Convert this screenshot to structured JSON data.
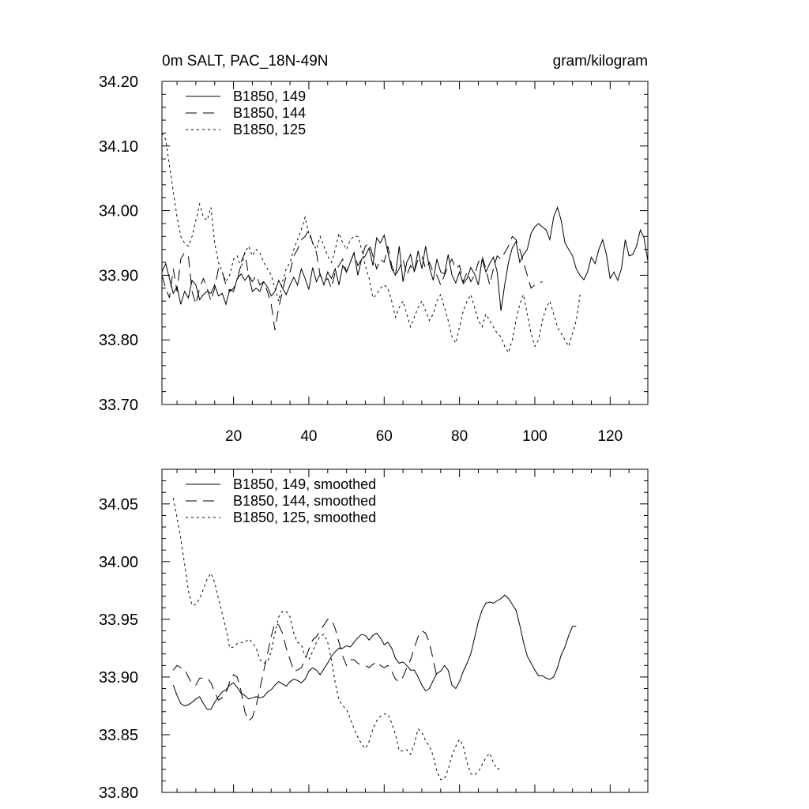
{
  "chart_data": [
    {
      "type": "line",
      "title": "0m SALT, PAC_18N-49N",
      "units": "gram/kilogram",
      "xlabel": "",
      "ylabel": "",
      "xlim": [
        1,
        130
      ],
      "ylim": [
        33.7,
        34.2
      ],
      "xticks": [
        20,
        40,
        60,
        80,
        100,
        120
      ],
      "xtick_labels": [
        "20",
        "40",
        "60",
        "80",
        "100",
        "120"
      ],
      "yticks": [
        33.7,
        33.8,
        33.9,
        34.0,
        34.1,
        34.2
      ],
      "ytick_labels": [
        "33.70",
        "33.80",
        "33.90",
        "34.00",
        "34.10",
        "34.20"
      ],
      "legend_position": "top-left",
      "series": [
        {
          "name": "B1850, 149",
          "style": "solid",
          "x_start": 1,
          "values": [
            33.905,
            33.918,
            33.895,
            33.872,
            33.882,
            33.855,
            33.875,
            33.865,
            33.892,
            33.885,
            33.862,
            33.87,
            33.875,
            33.872,
            33.885,
            33.868,
            33.872,
            33.855,
            33.878,
            33.875,
            33.895,
            33.902,
            33.892,
            33.9,
            33.875,
            33.88,
            33.875,
            33.89,
            33.882,
            33.868,
            33.875,
            33.892,
            33.88,
            33.87,
            33.885,
            33.897,
            33.885,
            33.91,
            33.895,
            33.878,
            33.912,
            33.89,
            33.902,
            33.885,
            33.905,
            33.895,
            33.91,
            33.885,
            33.915,
            33.905,
            33.92,
            33.935,
            33.9,
            33.925,
            33.93,
            33.942,
            33.915,
            33.958,
            33.95,
            33.962,
            33.935,
            33.91,
            33.9,
            33.945,
            33.89,
            33.92,
            33.932,
            33.905,
            33.938,
            33.91,
            33.945,
            33.912,
            33.892,
            33.925,
            33.905,
            33.902,
            33.932,
            33.9,
            33.888,
            33.905,
            33.887,
            33.895,
            33.912,
            33.902,
            33.885,
            33.925,
            33.905,
            33.918,
            33.928,
            33.905,
            33.845,
            33.885,
            33.92,
            33.942,
            33.952,
            33.92,
            33.932,
            33.94,
            33.965,
            33.975,
            33.98,
            33.975,
            33.97,
            33.955,
            33.99,
            34.005,
            33.985,
            33.95,
            33.94,
            33.93,
            33.91,
            33.9,
            33.893,
            33.905,
            33.928,
            33.918,
            33.94,
            33.955,
            33.932,
            33.895,
            33.905,
            33.892,
            33.91,
            33.955,
            33.93,
            33.932,
            33.945,
            33.97,
            33.958,
            33.922
          ]
        },
        {
          "name": "B1850, 144",
          "style": "dashed",
          "x_start": 1,
          "values": [
            33.9,
            33.88,
            33.865,
            33.91,
            33.875,
            33.925,
            33.935,
            33.93,
            33.875,
            33.855,
            33.88,
            33.895,
            33.88,
            33.86,
            33.88,
            33.91,
            33.905,
            33.885,
            33.875,
            33.88,
            33.89,
            33.92,
            33.935,
            33.9,
            33.89,
            33.9,
            33.885,
            33.89,
            33.875,
            33.855,
            33.815,
            33.85,
            33.875,
            33.9,
            33.905,
            33.93,
            33.94,
            33.955,
            33.96,
            33.97,
            33.95,
            33.935,
            33.9,
            33.89,
            33.895,
            33.88,
            33.905,
            33.915,
            33.925,
            33.905,
            33.92,
            33.935,
            33.915,
            33.925,
            33.945,
            33.95,
            33.93,
            33.91,
            33.925,
            33.92,
            33.945,
            33.915,
            33.9,
            33.91,
            33.925,
            33.9,
            33.915,
            33.905,
            33.925,
            33.93,
            33.91,
            33.92,
            33.905,
            33.9,
            33.885,
            33.9,
            33.915,
            33.925,
            33.91,
            33.915,
            33.89,
            33.905,
            33.89,
            33.9,
            33.92,
            33.93,
            33.91,
            33.885,
            33.91,
            33.93,
            33.925,
            33.935,
            33.945,
            33.96,
            33.955,
            33.94,
            33.92,
            33.9,
            33.88,
            33.885,
            33.888,
            33.89
          ]
        },
        {
          "name": "B1850, 125",
          "style": "dotted",
          "x_start": 1,
          "values": [
            34.12,
            34.11,
            34.07,
            34.03,
            33.99,
            33.96,
            33.95,
            33.945,
            33.96,
            33.985,
            34.01,
            33.99,
            33.985,
            34.005,
            33.95,
            33.92,
            33.905,
            33.89,
            33.9,
            33.925,
            33.93,
            33.91,
            33.935,
            33.945,
            33.93,
            33.94,
            33.935,
            33.92,
            33.91,
            33.9,
            33.88,
            33.86,
            33.89,
            33.91,
            33.92,
            33.94,
            33.955,
            33.97,
            33.99,
            33.965,
            33.95,
            33.94,
            33.96,
            33.945,
            33.93,
            33.92,
            33.94,
            33.965,
            33.95,
            33.94,
            33.955,
            33.96,
            33.96,
            33.94,
            33.915,
            33.895,
            33.865,
            33.87,
            33.88,
            33.885,
            33.88,
            33.86,
            33.835,
            33.85,
            33.86,
            33.84,
            33.82,
            33.835,
            33.85,
            33.86,
            33.845,
            33.83,
            33.84,
            33.86,
            33.87,
            33.85,
            33.83,
            33.805,
            33.795,
            33.82,
            33.845,
            33.86,
            33.87,
            33.85,
            33.83,
            33.82,
            33.84,
            33.83,
            33.82,
            33.81,
            33.805,
            33.79,
            33.78,
            33.8,
            33.83,
            33.855,
            33.87,
            33.84,
            33.81,
            33.79,
            33.8,
            33.83,
            33.85,
            33.86,
            33.84,
            33.82,
            33.81,
            33.8,
            33.79,
            33.81,
            33.83,
            33.87
          ]
        }
      ]
    },
    {
      "type": "line",
      "title": "",
      "xlabel": "",
      "ylabel": "",
      "xlim": [
        1,
        130
      ],
      "ylim": [
        33.8,
        34.08
      ],
      "xticks": [
        20,
        40,
        60,
        80,
        100,
        120
      ],
      "yticks": [
        33.8,
        33.85,
        33.9,
        33.95,
        34.0,
        34.05
      ],
      "ytick_labels": [
        "33.80",
        "33.85",
        "33.90",
        "33.95",
        "34.00",
        "34.05"
      ],
      "legend_position": "top-left",
      "series": [
        {
          "name": "B1850, 149, smoothed",
          "style": "solid",
          "x_start": 4,
          "values": [
            33.893,
            33.884,
            33.877,
            33.875,
            33.876,
            33.878,
            33.881,
            33.883,
            33.877,
            33.872,
            33.872,
            33.878,
            33.883,
            33.887,
            33.889,
            33.893,
            33.895,
            33.891,
            33.886,
            33.884,
            33.881,
            33.882,
            33.883,
            33.882,
            33.883,
            33.887,
            33.889,
            33.893,
            33.896,
            33.894,
            33.892,
            33.896,
            33.898,
            33.897,
            33.895,
            33.898,
            33.905,
            33.908,
            33.906,
            33.902,
            33.907,
            33.912,
            33.918,
            33.922,
            33.925,
            33.925,
            33.927,
            33.926,
            33.93,
            33.934,
            33.937,
            33.936,
            33.932,
            33.936,
            33.938,
            33.934,
            33.928,
            33.93,
            33.925,
            33.916,
            33.912,
            33.913,
            33.91,
            33.906,
            33.906,
            33.9,
            33.893,
            33.888,
            33.89,
            33.897,
            33.903,
            33.905,
            33.91,
            33.906,
            33.893,
            33.89,
            33.896,
            33.905,
            33.912,
            33.92,
            33.934,
            33.948,
            33.958,
            33.964,
            33.965,
            33.964,
            33.966,
            33.968,
            33.971,
            33.968,
            33.963,
            33.958,
            33.945,
            33.93,
            33.918,
            33.912,
            33.906,
            33.901,
            33.901,
            33.899,
            33.898,
            33.9,
            33.908,
            33.919,
            33.926,
            33.936,
            33.944,
            33.944
          ]
        },
        {
          "name": "B1850, 144, smoothed",
          "style": "dashed",
          "x_start": 4,
          "values": [
            33.906,
            33.91,
            33.908,
            33.907,
            33.9,
            33.894,
            33.893,
            33.899,
            33.899,
            33.899,
            33.895,
            33.887,
            33.88,
            33.882,
            33.886,
            33.896,
            33.902,
            33.9,
            33.888,
            33.87,
            33.862,
            33.865,
            33.875,
            33.89,
            33.905,
            33.92,
            33.935,
            33.947,
            33.945,
            33.938,
            33.925,
            33.915,
            33.905,
            33.906,
            33.908,
            33.915,
            33.924,
            33.932,
            33.935,
            33.94,
            33.945,
            33.95,
            33.95,
            33.942,
            33.93,
            33.918,
            33.91,
            33.915,
            33.915,
            33.912,
            33.91,
            33.91,
            33.908,
            33.911,
            33.913,
            33.91,
            33.908,
            33.91,
            33.905,
            33.898,
            33.896,
            33.9,
            33.908,
            33.915,
            33.925,
            33.935,
            33.94,
            33.938,
            33.93,
            33.915,
            33.9
          ]
        },
        {
          "name": "B1850, 125, smoothed",
          "style": "dotted",
          "x_start": 4,
          "values": [
            34.055,
            34.038,
            34.02,
            33.998,
            33.975,
            33.962,
            33.963,
            33.968,
            33.976,
            33.985,
            33.99,
            33.982,
            33.968,
            33.955,
            33.942,
            33.925,
            33.926,
            33.929,
            33.93,
            33.93,
            33.933,
            33.93,
            33.925,
            33.915,
            33.912,
            33.913,
            33.922,
            33.938,
            33.952,
            33.957,
            33.957,
            33.952,
            33.938,
            33.93,
            33.928,
            33.918,
            33.915,
            33.922,
            33.93,
            33.935,
            33.937,
            33.93,
            33.915,
            33.895,
            33.88,
            33.875,
            33.872,
            33.864,
            33.855,
            33.848,
            33.842,
            33.838,
            33.844,
            33.855,
            33.862,
            33.866,
            33.868,
            33.868,
            33.86,
            33.85,
            33.836,
            33.836,
            33.837,
            33.833,
            33.842,
            33.855,
            33.852,
            33.845,
            33.84,
            33.832,
            33.818,
            33.811,
            33.812,
            33.82,
            33.832,
            33.84,
            33.846,
            33.84,
            33.826,
            33.816,
            33.815,
            33.818,
            33.824,
            33.83,
            33.834,
            33.826,
            33.82,
            33.822
          ]
        }
      ]
    }
  ]
}
